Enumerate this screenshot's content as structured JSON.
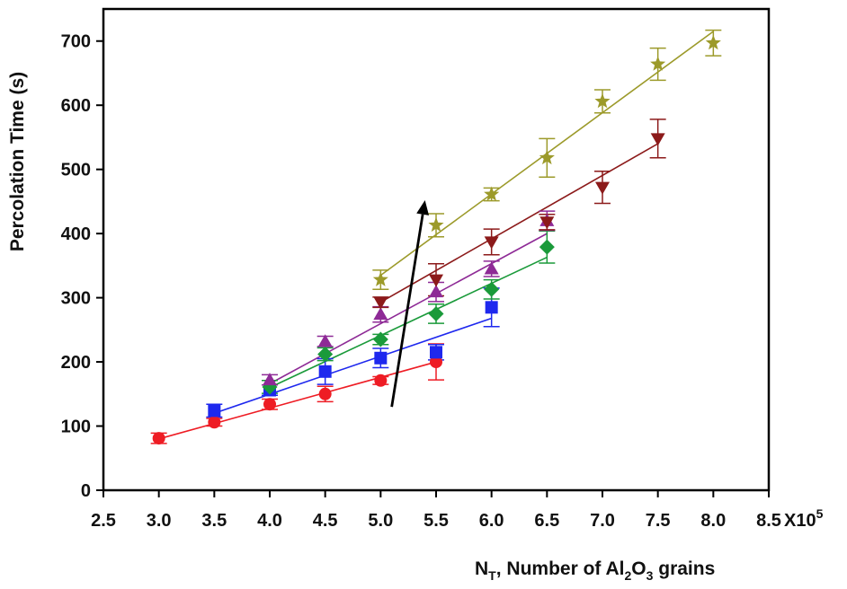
{
  "chart_data": {
    "type": "scatter",
    "title": "",
    "xlabel_parts": [
      "N",
      "T",
      ", Number of Al",
      "2",
      "O",
      "3",
      " grains"
    ],
    "ylabel": "Percolation Time (s)",
    "x_multiplier": "X10",
    "x_multiplier_exp": "5",
    "xlim": [
      2.5,
      8.5
    ],
    "ylim": [
      0,
      750
    ],
    "x_ticks": [
      2.5,
      3.0,
      3.5,
      4.0,
      4.5,
      5.0,
      5.5,
      6.0,
      6.5,
      7.0,
      7.5,
      8.0,
      8.5
    ],
    "x_tick_labels": [
      "2.5",
      "3.0",
      "3.5",
      "4.0",
      "4.5",
      "5.0",
      "5.5",
      "6.0",
      "6.5",
      "7.0",
      "7.5",
      "8.0",
      "8.5"
    ],
    "y_ticks": [
      0,
      100,
      200,
      300,
      400,
      500,
      600,
      700
    ],
    "y_tick_labels": [
      "0",
      "100",
      "200",
      "300",
      "400",
      "500",
      "600",
      "700"
    ],
    "grid": false,
    "legend": "none",
    "arrow": {
      "from": [
        5.1,
        130
      ],
      "to": [
        5.4,
        452
      ]
    },
    "series": [
      {
        "marker": "circle",
        "color": "#ee1c24",
        "x": [
          3.0,
          3.5,
          4.0,
          4.5,
          5.0,
          5.5
        ],
        "y": [
          81,
          106,
          134,
          150,
          171,
          200
        ],
        "err": [
          8,
          6,
          8,
          12,
          6,
          28
        ],
        "fit": [
          [
            3.0,
            80
          ],
          [
            5.5,
            200
          ]
        ]
      },
      {
        "marker": "square",
        "color": "#1e28ee",
        "x": [
          3.5,
          4.0,
          4.5,
          5.0,
          5.5,
          6.0
        ],
        "y": [
          124,
          156,
          185,
          206,
          215,
          285
        ],
        "err": [
          10,
          8,
          20,
          15,
          12,
          30
        ],
        "fit": [
          [
            3.5,
            120
          ],
          [
            6.0,
            268
          ]
        ]
      },
      {
        "marker": "diamond",
        "color": "#1a9a3a",
        "x": [
          4.0,
          4.5,
          5.0,
          5.5,
          6.0,
          6.5
        ],
        "y": [
          161,
          212,
          235,
          275,
          313,
          379
        ],
        "err": [
          10,
          10,
          8,
          15,
          15,
          25
        ],
        "fit": [
          [
            4.0,
            160
          ],
          [
            6.5,
            363
          ]
        ]
      },
      {
        "marker": "triangle-up",
        "color": "#8e2a96",
        "x": [
          4.0,
          4.5,
          5.0,
          5.5,
          6.0,
          6.5
        ],
        "y": [
          172,
          232,
          274,
          309,
          345,
          420
        ],
        "err": [
          8,
          8,
          12,
          15,
          12,
          15
        ],
        "fit": [
          [
            4.0,
            166
          ],
          [
            6.5,
            400
          ]
        ]
      },
      {
        "marker": "triangle-down",
        "color": "#8c1a1a",
        "x": [
          5.0,
          5.5,
          6.0,
          6.5,
          7.0,
          7.5
        ],
        "y": [
          293,
          328,
          387,
          418,
          472,
          548
        ],
        "err": [
          8,
          25,
          20,
          12,
          25,
          30
        ],
        "fit": [
          [
            5.0,
            293
          ],
          [
            7.5,
            540
          ]
        ]
      },
      {
        "marker": "star",
        "color": "#9c9a2a",
        "x": [
          5.0,
          5.5,
          6.0,
          6.5,
          7.0,
          7.5,
          8.0
        ],
        "y": [
          328,
          413,
          461,
          518,
          606,
          664,
          697
        ],
        "err": [
          15,
          18,
          10,
          30,
          18,
          25,
          20
        ],
        "fit": [
          [
            5.0,
            335
          ],
          [
            8.0,
            715
          ]
        ]
      }
    ]
  }
}
